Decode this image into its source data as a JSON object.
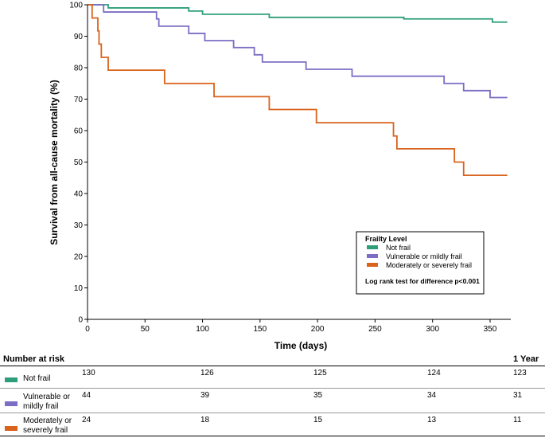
{
  "chart_data": {
    "type": "line",
    "title": "",
    "xlabel": "Time (days)",
    "ylabel": "Survival from all-cause mortality (%)",
    "xlim": [
      0,
      368
    ],
    "ylim": [
      0,
      100
    ],
    "x_ticks": [
      "0",
      "50",
      "100",
      "150",
      "200",
      "250",
      "300",
      "350"
    ],
    "y_ticks": [
      "0",
      "10",
      "20",
      "30",
      "40",
      "50",
      "60",
      "70",
      "80",
      "90",
      "100"
    ],
    "legend": {
      "title": "Frailty Level",
      "position": "lower-right",
      "note": "Log rank test for difference p<0.001"
    },
    "series": [
      {
        "name": "Not frail",
        "color": "#2e9e7a",
        "steps": [
          [
            0,
            100
          ],
          [
            12,
            100
          ],
          [
            18,
            99
          ],
          [
            65,
            99
          ],
          [
            88,
            98
          ],
          [
            100,
            97
          ],
          [
            155,
            97
          ],
          [
            158,
            96
          ],
          [
            272,
            96
          ],
          [
            275,
            95.5
          ],
          [
            350,
            95.5
          ],
          [
            352,
            94.5
          ],
          [
            365,
            94.5
          ]
        ]
      },
      {
        "name": "Vulnerable or mildly frail",
        "color": "#7b6ec4",
        "steps": [
          [
            0,
            100
          ],
          [
            12,
            100
          ],
          [
            14,
            97.7
          ],
          [
            58,
            97.7
          ],
          [
            60,
            95.5
          ],
          [
            62,
            93.2
          ],
          [
            85,
            93.2
          ],
          [
            88,
            90.9
          ],
          [
            100,
            90.9
          ],
          [
            102,
            88.6
          ],
          [
            125,
            88.6
          ],
          [
            127,
            86.4
          ],
          [
            142,
            86.4
          ],
          [
            145,
            84.1
          ],
          [
            150,
            84.1
          ],
          [
            152,
            81.8
          ],
          [
            188,
            81.8
          ],
          [
            190,
            79.5
          ],
          [
            228,
            79.5
          ],
          [
            230,
            77.3
          ],
          [
            308,
            77.3
          ],
          [
            310,
            75
          ],
          [
            325,
            75
          ],
          [
            327,
            72.7
          ],
          [
            348,
            72.7
          ],
          [
            350,
            70.5
          ],
          [
            365,
            70.5
          ]
        ]
      },
      {
        "name": "Moderately or severely frail",
        "color": "#d9621c",
        "steps": [
          [
            0,
            100
          ],
          [
            3,
            100
          ],
          [
            4,
            95.8
          ],
          [
            8,
            95.8
          ],
          [
            9,
            91.7
          ],
          [
            10,
            87.5
          ],
          [
            11,
            87.5
          ],
          [
            12,
            83.3
          ],
          [
            17,
            83.3
          ],
          [
            18,
            79.2
          ],
          [
            66,
            79.2
          ],
          [
            67,
            75
          ],
          [
            109,
            75
          ],
          [
            110,
            70.8
          ],
          [
            157,
            70.8
          ],
          [
            158,
            66.7
          ],
          [
            198,
            66.7
          ],
          [
            199,
            62.5
          ],
          [
            265,
            62.5
          ],
          [
            266,
            58.3
          ],
          [
            268,
            58.3
          ],
          [
            269,
            54.2
          ],
          [
            318,
            54.2
          ],
          [
            319,
            50
          ],
          [
            325,
            50
          ],
          [
            327,
            45.8
          ],
          [
            365,
            45.8
          ]
        ]
      }
    ]
  },
  "risk_table": {
    "title": "Number at risk",
    "end_label": "1 Year",
    "rows": [
      {
        "label_line1": "Not frail",
        "label_line2": "",
        "color": "#2e9e7a",
        "values": [
          "130",
          "126",
          "125",
          "124",
          "123"
        ]
      },
      {
        "label_line1": "Vulnerable or",
        "label_line2": "mildly frail",
        "color": "#7b6ec4",
        "values": [
          "44",
          "39",
          "35",
          "34",
          "31"
        ]
      },
      {
        "label_line1": "Moderately or",
        "label_line2": "severely frail",
        "color": "#d9621c",
        "values": [
          "24",
          "18",
          "15",
          "13",
          "11"
        ]
      }
    ]
  }
}
